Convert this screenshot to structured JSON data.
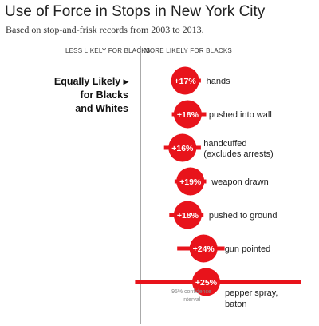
{
  "title": "Use of Force in Stops in New York City",
  "subtitle": "Based on stop-and-frisk records from 2003 to 2013.",
  "axis_left_label": "LESS LIKELY FOR BLACKS",
  "axis_right_label": "MORE LIKELY FOR BLACKS",
  "equal_label": [
    "Equally Likely ▸",
    "for Blacks",
    "and Whites"
  ],
  "ci_note": [
    "95% confidence",
    "interval"
  ],
  "colors": {
    "accent": "#e8131b",
    "axis": "#555555",
    "text": "#222222",
    "note": "#888888"
  },
  "chart_data": {
    "type": "dot-interval",
    "unit": "%",
    "zero_line_label": "Equally Likely for Blacks and Whites",
    "categories": [
      "hands",
      "pushed into wall",
      "handcuffed (excludes arrests)",
      "weapon drawn",
      "pushed to ground",
      "gun pointed",
      "pepper spray, baton"
    ],
    "values": [
      17,
      18,
      16,
      19,
      18,
      24,
      25
    ],
    "labels": [
      "+17%",
      "+18%",
      "+16%",
      "+19%",
      "+18%",
      "+24%",
      "+25%"
    ],
    "ci": [
      [
        12,
        23
      ],
      [
        12,
        25
      ],
      [
        9,
        23
      ],
      [
        13,
        25
      ],
      [
        11,
        24
      ],
      [
        14,
        32
      ],
      [
        -2,
        61
      ]
    ]
  }
}
